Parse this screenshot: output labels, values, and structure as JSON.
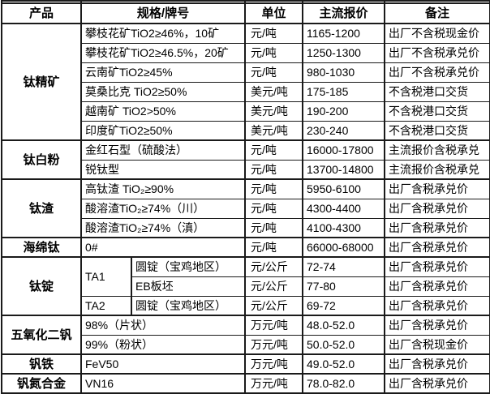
{
  "style": {
    "border_color": "#1a1a1a",
    "background_color": "#ffffff",
    "text_color": "#000000"
  },
  "table": {
    "headers": [
      "产品",
      "规格/牌号",
      "单位",
      "主流报价",
      "备注"
    ],
    "groups": [
      {
        "product": "钛精矿",
        "rows": [
          {
            "spec": "攀枝花矿TiO2≥46%，10矿",
            "unit": "元/吨",
            "price": "1165-1200",
            "note": "出厂不含税现金价"
          },
          {
            "spec": "攀枝花矿TiO2≥46.5%，20矿",
            "unit": "元/吨",
            "price": "1250-1300",
            "note": "出厂不含税承兑价"
          },
          {
            "spec": "云南矿TiO2≥45%",
            "unit": "元/吨",
            "price": "980-1030",
            "note": "出厂不含税承兑价"
          },
          {
            "spec": "莫桑比克 TiO2≥50%",
            "unit": "美元/吨",
            "price": "175-185",
            "note": "不含税港口交货"
          },
          {
            "spec": "越南矿 TiO2>50%",
            "unit": "美元/吨",
            "price": "190-200",
            "note": "不含税港口交货"
          },
          {
            "spec": "印度矿TiO2≥50%",
            "unit": "美元/吨",
            "price": "230-240",
            "note": "不含税港口交货"
          }
        ]
      },
      {
        "product": "钛白粉",
        "rows": [
          {
            "spec": "金红石型（硫酸法）",
            "unit": "元/吨",
            "price": "16000-17800",
            "note": "主流报价含税承兑"
          },
          {
            "spec": "锐钛型",
            "unit": "元/吨",
            "price": "13700-14800",
            "note": "主流报价含税承兑"
          }
        ]
      },
      {
        "product": "钛渣",
        "rows": [
          {
            "spec": "高钛渣 TiO₂≥90%",
            "unit": "元/吨",
            "price": "5950-6100",
            "note": "出厂含税承兑价"
          },
          {
            "spec": "酸溶渣TiO₂≥74%（川）",
            "unit": "元/吨",
            "price": "4300-4400",
            "note": "出厂含税承兑价"
          },
          {
            "spec": "酸溶渣TiO₂≥74%（滇）",
            "unit": "元/吨",
            "price": "4100-4300",
            "note": "出厂含税承兑价"
          }
        ]
      },
      {
        "product": "海绵钛",
        "rows": [
          {
            "spec": "0#",
            "unit": "元/吨",
            "price": "66000-68000",
            "note": "出厂含税承兑价"
          }
        ]
      },
      {
        "product": "钛锭",
        "split": true,
        "rows": [
          {
            "grade": "TA1",
            "grade_rowspan": 2,
            "spec": "圆锭（宝鸡地区）",
            "unit": "元/公斤",
            "price": "72-74",
            "note": "出厂含税承兑价"
          },
          {
            "spec": "EB板坯",
            "unit": "元/公斤",
            "price": "77-80",
            "note": "出厂含税承兑价"
          },
          {
            "grade": "TA2",
            "grade_rowspan": 1,
            "spec": "圆锭（宝鸡地区）",
            "unit": "元/公斤",
            "price": "69-72",
            "note": "出厂含税承兑价"
          }
        ]
      },
      {
        "product": "五氧化二钒",
        "rows": [
          {
            "spec": "98%（片状）",
            "unit": "万元/吨",
            "price": "48.0-52.0",
            "note": "出厂含税承兑价"
          },
          {
            "spec": "99%（粉状）",
            "unit": "万元/吨",
            "price": "50.0-52.0",
            "note": "出厂含税现金价"
          }
        ]
      },
      {
        "product": "钒铁",
        "rows": [
          {
            "spec": "FeV50",
            "unit": "万元/吨",
            "price": "49.0-52.0",
            "note": "出厂含税承兑价"
          }
        ]
      },
      {
        "product": "钒氮合金",
        "rows": [
          {
            "spec": "VN16",
            "unit": "万元/吨",
            "price": "78.0-82.0",
            "note": "出厂含税承兑价"
          }
        ]
      }
    ]
  }
}
